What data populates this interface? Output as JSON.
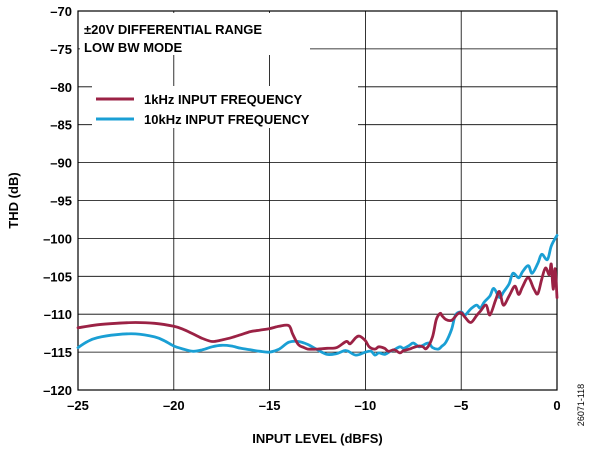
{
  "chart_data": {
    "type": "line",
    "xlabel": "INPUT LEVEL (dBFS)",
    "ylabel": "THD (dB)",
    "xlim": [
      -25,
      0
    ],
    "ylim": [
      -120,
      -70
    ],
    "grid": true,
    "xticks": [
      -25,
      -20,
      -15,
      -10,
      -5,
      0
    ],
    "xtick_labels": [
      "–25",
      "–20",
      "–15",
      "–10",
      "–5",
      "0"
    ],
    "yticks": [
      -70,
      -75,
      -80,
      -85,
      -90,
      -95,
      -100,
      -105,
      -110,
      -115,
      -120
    ],
    "ytick_labels": [
      "–70",
      "–75",
      "–80",
      "–85",
      "–90",
      "–95",
      "–100",
      "–105",
      "–110",
      "–115",
      "–120"
    ],
    "annotation_lines": [
      "±20V DIFFERENTIAL RANGE",
      "LOW BW MODE"
    ],
    "legend_position": "top-left",
    "figure_id": "26071-118",
    "series": [
      {
        "name": "1kHz INPUT FREQUENCY",
        "color": "#9b2245",
        "x": [
          -25,
          -24,
          -23,
          -22,
          -21,
          -20,
          -19.5,
          -19,
          -18.5,
          -18,
          -17.5,
          -17,
          -16.5,
          -16,
          -15.5,
          -15,
          -14.5,
          -14,
          -13.8,
          -13.5,
          -13.2,
          -13,
          -12.5,
          -12,
          -11.5,
          -11,
          -10.8,
          -10.5,
          -10.3,
          -10,
          -9.8,
          -9.5,
          -9.3,
          -9,
          -8.8,
          -8.5,
          -8.2,
          -8,
          -7.7,
          -7.5,
          -7.2,
          -7,
          -6.8,
          -6.5,
          -6.3,
          -6.1,
          -6,
          -5.8,
          -5.5,
          -5.2,
          -5,
          -4.8,
          -4.5,
          -4.2,
          -4,
          -3.7,
          -3.5,
          -3.2,
          -3,
          -2.8,
          -2.5,
          -2.2,
          -2,
          -1.8,
          -1.5,
          -1.2,
          -1,
          -0.8,
          -0.6,
          -0.4,
          -0.3,
          -0.2,
          -0.1,
          0
        ],
        "y": [
          -111.8,
          -111.4,
          -111.2,
          -111.1,
          -111.2,
          -111.6,
          -112,
          -112.6,
          -113.2,
          -113.6,
          -113.4,
          -113.1,
          -112.7,
          -112.3,
          -112.1,
          -111.9,
          -111.6,
          -111.5,
          -112.6,
          -114,
          -114.4,
          -114.6,
          -114.6,
          -114.5,
          -114.4,
          -113.6,
          -113.9,
          -113.1,
          -112.9,
          -113.5,
          -114.3,
          -114.6,
          -114.3,
          -114.5,
          -114.9,
          -114.7,
          -115.1,
          -114.8,
          -114.6,
          -114.4,
          -114.2,
          -114.3,
          -114.5,
          -113,
          -110.7,
          -109.9,
          -110.2,
          -110.7,
          -110.8,
          -110,
          -109.8,
          -110.4,
          -111.1,
          -110.2,
          -109.6,
          -108.8,
          -110.1,
          -108.1,
          -107,
          -108.8,
          -107.6,
          -106.3,
          -107.4,
          -106.4,
          -105.2,
          -106.7,
          -107.3,
          -105.4,
          -103.9,
          -104.8,
          -103.4,
          -106.7,
          -104,
          -107.8
        ]
      },
      {
        "name": "10kHz INPUT FREQUENCY",
        "color": "#1a9fd4",
        "x": [
          -25,
          -24.5,
          -24,
          -23,
          -22,
          -21,
          -20.5,
          -20,
          -19.5,
          -19,
          -18.5,
          -18,
          -17.5,
          -17,
          -16.5,
          -16,
          -15.5,
          -15,
          -14.5,
          -14,
          -13.5,
          -13,
          -12.5,
          -12,
          -11.5,
          -11,
          -10.5,
          -10,
          -9.7,
          -9.5,
          -9.3,
          -9,
          -8.7,
          -8.5,
          -8.2,
          -8,
          -7.7,
          -7.5,
          -7.2,
          -7,
          -6.7,
          -6.5,
          -6.2,
          -6,
          -5.8,
          -5.5,
          -5.3,
          -5,
          -4.8,
          -4.5,
          -4.2,
          -4,
          -3.8,
          -3.5,
          -3.3,
          -3,
          -2.8,
          -2.5,
          -2.3,
          -2,
          -1.8,
          -1.5,
          -1.3,
          -1,
          -0.8,
          -0.5,
          -0.3,
          0
        ],
        "y": [
          -114.4,
          -113.6,
          -113.1,
          -112.7,
          -112.6,
          -113,
          -113.5,
          -114.2,
          -114.6,
          -114.9,
          -114.7,
          -114.3,
          -114.1,
          -114.2,
          -114.5,
          -114.7,
          -114.9,
          -115,
          -114.6,
          -113.7,
          -113.6,
          -114,
          -114.7,
          -115.3,
          -115.2,
          -114.8,
          -115.4,
          -115,
          -114.9,
          -115.4,
          -115.1,
          -115.3,
          -114.9,
          -114.7,
          -114.3,
          -114.5,
          -114.1,
          -113.8,
          -114.3,
          -114.1,
          -113.8,
          -114.4,
          -114.6,
          -114.2,
          -113.7,
          -112,
          -110.1,
          -109.7,
          -110.1,
          -109.3,
          -108.8,
          -109.2,
          -108.4,
          -107.6,
          -106.6,
          -107.8,
          -107.1,
          -106,
          -104.6,
          -105.2,
          -104.4,
          -103.6,
          -104.6,
          -103.3,
          -102.1,
          -102.8,
          -101,
          -99.6
        ]
      }
    ]
  }
}
